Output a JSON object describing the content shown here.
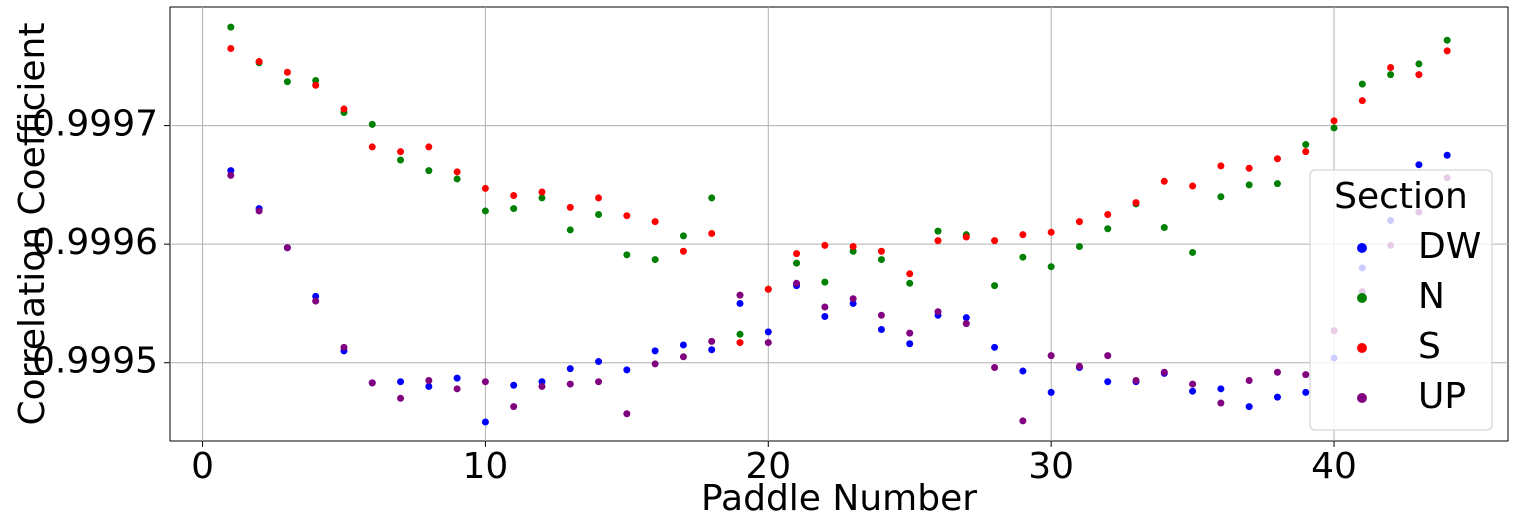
{
  "chart_data": {
    "type": "scatter",
    "xlabel": "Paddle Number",
    "ylabel": "Correlation Coefficient",
    "legend_title": "Section",
    "legend": "right",
    "grid": true,
    "xlim": [
      -1.15,
      46.15
    ],
    "xticks": [
      0,
      10,
      20,
      30,
      40
    ],
    "ylim": [
      0.999434,
      0.9998
    ],
    "yticks": [
      0.9995,
      0.9996,
      0.9997
    ],
    "x": [
      1,
      2,
      3,
      4,
      5,
      6,
      7,
      8,
      9,
      10,
      11,
      12,
      13,
      14,
      15,
      16,
      17,
      18,
      19,
      20,
      21,
      22,
      23,
      24,
      25,
      26,
      27,
      28,
      29,
      30,
      31,
      32,
      33,
      34,
      35,
      36,
      37,
      38,
      39,
      40,
      41,
      42,
      43,
      44
    ],
    "series": [
      {
        "name": "DW",
        "color": "blue",
        "values": [
          0.999662,
          0.99963,
          0.999597,
          0.999556,
          0.99951,
          0.999483,
          0.999484,
          0.99948,
          0.999487,
          0.99945,
          0.999481,
          0.999484,
          0.999495,
          0.999501,
          0.999494,
          0.99951,
          0.999515,
          0.999511,
          0.99955,
          0.999526,
          0.999565,
          0.999539,
          0.99955,
          0.999528,
          0.999516,
          0.99954,
          0.999538,
          0.999513,
          0.999493,
          0.999475,
          0.999496,
          0.999484,
          0.999484,
          0.999491,
          0.999476,
          0.999478,
          0.999463,
          0.999471,
          0.999475,
          0.999504,
          0.99958,
          0.99962,
          0.999667,
          0.999675
        ]
      },
      {
        "name": "N",
        "color": "green",
        "values": [
          0.999783,
          0.999753,
          0.999737,
          0.999738,
          0.999711,
          0.999701,
          0.999671,
          0.999662,
          0.999655,
          0.999628,
          0.99963,
          0.999639,
          0.999612,
          0.999625,
          0.999591,
          0.999587,
          0.999607,
          0.999639,
          0.999524,
          0.999562,
          0.999584,
          0.999568,
          0.999594,
          0.999587,
          0.999567,
          0.999611,
          0.999608,
          0.999565,
          0.999589,
          0.999581,
          0.999598,
          0.999613,
          0.999634,
          0.999614,
          0.999593,
          0.99964,
          0.99965,
          0.999651,
          0.999684,
          0.999698,
          0.999735,
          0.999743,
          0.999752,
          0.999772
        ]
      },
      {
        "name": "S",
        "color": "red",
        "values": [
          0.999765,
          0.999754,
          0.999745,
          0.999734,
          0.999714,
          0.999682,
          0.999678,
          0.999682,
          0.999661,
          0.999647,
          0.999641,
          0.999644,
          0.999631,
          0.999639,
          0.999624,
          0.999619,
          0.999594,
          0.999609,
          0.999517,
          0.999562,
          0.999592,
          0.999599,
          0.999598,
          0.999594,
          0.999575,
          0.999603,
          0.999606,
          0.999603,
          0.999608,
          0.99961,
          0.999619,
          0.999625,
          0.999635,
          0.999653,
          0.999649,
          0.999666,
          0.999664,
          0.999672,
          0.999678,
          0.999704,
          0.999721,
          0.999749,
          0.999743,
          0.999763
        ]
      },
      {
        "name": "UP",
        "color": "purple",
        "values": [
          0.999658,
          0.999628,
          0.999597,
          0.999552,
          0.999513,
          0.999483,
          0.99947,
          0.999485,
          0.999478,
          0.999484,
          0.999463,
          0.99948,
          0.999482,
          0.999484,
          0.999457,
          0.999499,
          0.999505,
          0.999518,
          0.999557,
          0.999517,
          0.999567,
          0.999547,
          0.999554,
          0.99954,
          0.999525,
          0.999543,
          0.999533,
          0.999496,
          0.999451,
          0.999506,
          0.999497,
          0.999506,
          0.999485,
          0.999492,
          0.999482,
          0.999466,
          0.999485,
          0.999492,
          0.99949,
          0.999527,
          0.99956,
          0.999599,
          0.999627,
          0.999656
        ]
      }
    ]
  }
}
